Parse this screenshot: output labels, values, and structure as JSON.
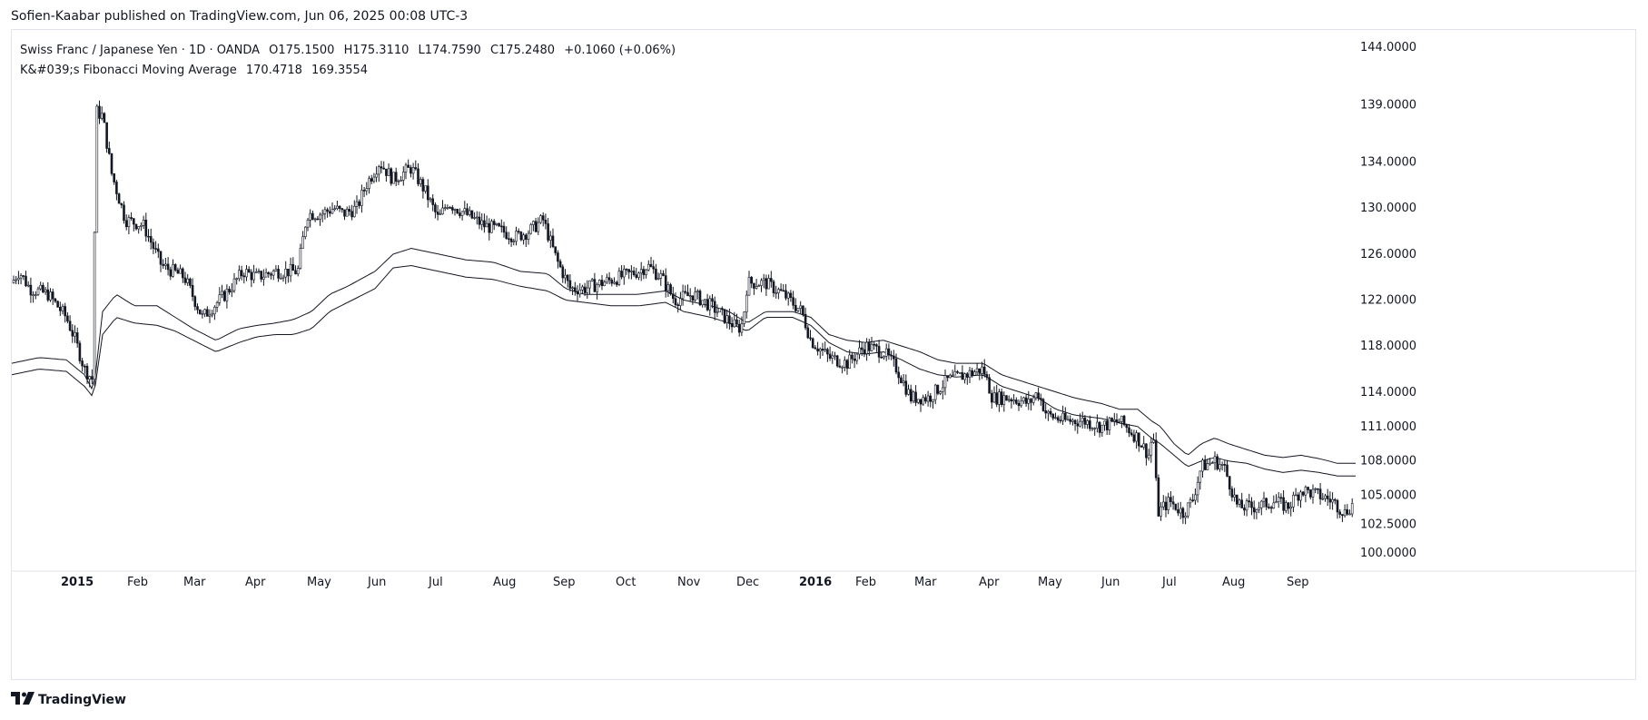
{
  "header": {
    "publisher": "Sofien-Kaabar published on TradingView.com, Jun 06, 2025 00:08 UTC-3"
  },
  "legend": {
    "symbol": "Swiss Franc / Japanese Yen · 1D · OANDA",
    "open": "O175.1500",
    "high": "H175.3110",
    "low": "L174.7590",
    "close": "C175.2480",
    "change": "+0.1060 (+0.06%)",
    "indicator_name": "K&#039;s Fibonacci Moving Average",
    "indicator_v1": "170.4718",
    "indicator_v2": "169.3554"
  },
  "footer": {
    "brand": "TradingView",
    "logo_icon": "tradingview-logo-icon"
  },
  "colors": {
    "candle": "#131722",
    "ma": "#131722",
    "grid": "#e0e3eb",
    "text": "#131722"
  },
  "chart_data": {
    "type": "candlestick",
    "ylim": [
      98.5,
      145.5
    ],
    "y_ticks": [
      "144.0000",
      "139.0000",
      "134.0000",
      "130.0000",
      "126.0000",
      "122.0000",
      "118.0000",
      "114.0000",
      "111.0000",
      "108.0000",
      "105.0000",
      "102.5000",
      "100.0000"
    ],
    "x_ticks": [
      {
        "label": "2015",
        "bold": true
      },
      {
        "label": "Feb"
      },
      {
        "label": "Mar"
      },
      {
        "label": "Apr"
      },
      {
        "label": "May"
      },
      {
        "label": "Jun"
      },
      {
        "label": "Jul"
      },
      {
        "label": "Aug"
      },
      {
        "label": "Sep"
      },
      {
        "label": "Oct"
      },
      {
        "label": "Nov"
      },
      {
        "label": "Dec"
      },
      {
        "label": "2016",
        "bold": true
      },
      {
        "label": "Feb"
      },
      {
        "label": "Mar"
      },
      {
        "label": "Apr"
      },
      {
        "label": "May"
      },
      {
        "label": "Jun"
      },
      {
        "label": "Jul"
      },
      {
        "label": "Aug"
      },
      {
        "label": "Sep"
      }
    ],
    "price_path": [
      [
        0,
        123.5
      ],
      [
        8,
        124.5
      ],
      [
        20,
        123.0
      ],
      [
        40,
        122.5
      ],
      [
        60,
        120.5
      ],
      [
        70,
        118.5
      ],
      [
        80,
        116.0
      ],
      [
        90,
        115.0
      ],
      [
        92,
        138.5
      ],
      [
        100,
        138.0
      ],
      [
        110,
        133.0
      ],
      [
        125,
        129.0
      ],
      [
        145,
        128.5
      ],
      [
        165,
        125.0
      ],
      [
        190,
        124.0
      ],
      [
        210,
        120.5
      ],
      [
        235,
        122.5
      ],
      [
        255,
        124.5
      ],
      [
        270,
        124.0
      ],
      [
        290,
        124.5
      ],
      [
        305,
        124.5
      ],
      [
        315,
        124.5
      ],
      [
        325,
        129.5
      ],
      [
        340,
        129.5
      ],
      [
        355,
        130.0
      ],
      [
        365,
        129.5
      ],
      [
        380,
        130.0
      ],
      [
        390,
        132.0
      ],
      [
        405,
        134.0
      ],
      [
        420,
        132.5
      ],
      [
        440,
        133.5
      ],
      [
        455,
        131.5
      ],
      [
        470,
        129.0
      ],
      [
        480,
        130.5
      ],
      [
        500,
        129.5
      ],
      [
        520,
        128.5
      ],
      [
        540,
        128.0
      ],
      [
        555,
        127.5
      ],
      [
        570,
        128.0
      ],
      [
        585,
        129.0
      ],
      [
        600,
        125.5
      ],
      [
        615,
        123.0
      ],
      [
        630,
        123.0
      ],
      [
        650,
        123.5
      ],
      [
        670,
        124.0
      ],
      [
        690,
        124.5
      ],
      [
        700,
        125.0
      ],
      [
        715,
        124.0
      ],
      [
        730,
        122.0
      ],
      [
        750,
        122.5
      ],
      [
        770,
        121.5
      ],
      [
        785,
        120.5
      ],
      [
        800,
        119.5
      ],
      [
        805,
        120.0
      ],
      [
        810,
        123.5
      ],
      [
        830,
        123.5
      ],
      [
        850,
        122.5
      ],
      [
        870,
        121.0
      ],
      [
        880,
        118.5
      ],
      [
        900,
        117.0
      ],
      [
        920,
        116.5
      ],
      [
        940,
        118.0
      ],
      [
        960,
        117.5
      ],
      [
        975,
        116.0
      ],
      [
        990,
        113.5
      ],
      [
        1010,
        113.5
      ],
      [
        1030,
        115.0
      ],
      [
        1050,
        115.5
      ],
      [
        1070,
        116.0
      ],
      [
        1080,
        113.5
      ],
      [
        1100,
        113.5
      ],
      [
        1120,
        113.0
      ],
      [
        1130,
        114.0
      ],
      [
        1140,
        112.0
      ],
      [
        1160,
        111.5
      ],
      [
        1180,
        111.5
      ],
      [
        1200,
        111.0
      ],
      [
        1220,
        111.5
      ],
      [
        1240,
        110.0
      ],
      [
        1252,
        108.5
      ],
      [
        1257,
        110.5
      ],
      [
        1262,
        103.5
      ],
      [
        1275,
        104.5
      ],
      [
        1290,
        103.5
      ],
      [
        1300,
        104.5
      ],
      [
        1310,
        107.5
      ],
      [
        1325,
        108.0
      ],
      [
        1335,
        107.5
      ],
      [
        1350,
        104.0
      ],
      [
        1370,
        104.0
      ],
      [
        1390,
        104.5
      ],
      [
        1405,
        104.0
      ],
      [
        1420,
        105.5
      ],
      [
        1440,
        105.0
      ],
      [
        1455,
        104.5
      ],
      [
        1468,
        103.5
      ],
      [
        1480,
        104.5
      ]
    ],
    "series": [
      {
        "name": "",
        "path": [
          [
            0,
            116.5
          ],
          [
            30,
            117.0
          ],
          [
            60,
            116.8
          ],
          [
            80,
            115.5
          ],
          [
            90,
            114.0
          ],
          [
            100,
            121.0
          ],
          [
            115,
            122.5
          ],
          [
            135,
            121.5
          ],
          [
            160,
            121.5
          ],
          [
            180,
            120.5
          ],
          [
            200,
            119.5
          ],
          [
            225,
            118.5
          ],
          [
            250,
            119.5
          ],
          [
            270,
            119.8
          ],
          [
            290,
            120.0
          ],
          [
            310,
            120.3
          ],
          [
            330,
            121.0
          ],
          [
            350,
            122.5
          ],
          [
            370,
            123.2
          ],
          [
            400,
            124.5
          ],
          [
            420,
            126.0
          ],
          [
            440,
            126.5
          ],
          [
            470,
            126.0
          ],
          [
            500,
            125.5
          ],
          [
            530,
            125.3
          ],
          [
            560,
            124.5
          ],
          [
            590,
            124.3
          ],
          [
            610,
            123.0
          ],
          [
            630,
            122.5
          ],
          [
            660,
            122.5
          ],
          [
            690,
            122.5
          ],
          [
            720,
            122.8
          ],
          [
            740,
            122.0
          ],
          [
            770,
            121.5
          ],
          [
            790,
            121.0
          ],
          [
            810,
            120.0
          ],
          [
            830,
            121.0
          ],
          [
            860,
            121.0
          ],
          [
            880,
            120.5
          ],
          [
            900,
            119.0
          ],
          [
            920,
            118.5
          ],
          [
            940,
            118.3
          ],
          [
            960,
            118.5
          ],
          [
            980,
            118.0
          ],
          [
            1000,
            117.5
          ],
          [
            1020,
            116.8
          ],
          [
            1040,
            116.5
          ],
          [
            1070,
            116.5
          ],
          [
            1090,
            115.5
          ],
          [
            1110,
            115.0
          ],
          [
            1130,
            114.5
          ],
          [
            1150,
            114.0
          ],
          [
            1170,
            113.5
          ],
          [
            1200,
            113.0
          ],
          [
            1220,
            112.5
          ],
          [
            1240,
            112.5
          ],
          [
            1255,
            111.5
          ],
          [
            1265,
            111.0
          ],
          [
            1280,
            109.5
          ],
          [
            1295,
            108.5
          ],
          [
            1310,
            109.5
          ],
          [
            1325,
            110.0
          ],
          [
            1340,
            109.5
          ],
          [
            1360,
            109.0
          ],
          [
            1380,
            108.5
          ],
          [
            1400,
            108.3
          ],
          [
            1420,
            108.5
          ],
          [
            1440,
            108.2
          ],
          [
            1460,
            107.8
          ],
          [
            1480,
            107.8
          ]
        ]
      },
      {
        "name": "",
        "path": [
          [
            0,
            115.5
          ],
          [
            30,
            116.0
          ],
          [
            60,
            115.8
          ],
          [
            80,
            114.5
          ],
          [
            90,
            113.5
          ],
          [
            100,
            119.0
          ],
          [
            115,
            120.5
          ],
          [
            135,
            120.0
          ],
          [
            160,
            119.8
          ],
          [
            180,
            119.3
          ],
          [
            200,
            118.5
          ],
          [
            225,
            117.5
          ],
          [
            250,
            118.3
          ],
          [
            270,
            118.8
          ],
          [
            290,
            119.0
          ],
          [
            310,
            119.0
          ],
          [
            330,
            119.5
          ],
          [
            350,
            121.0
          ],
          [
            370,
            121.8
          ],
          [
            400,
            123.0
          ],
          [
            420,
            124.8
          ],
          [
            440,
            125.0
          ],
          [
            470,
            124.5
          ],
          [
            500,
            124.0
          ],
          [
            530,
            123.8
          ],
          [
            560,
            123.2
          ],
          [
            590,
            122.8
          ],
          [
            610,
            122.0
          ],
          [
            630,
            121.8
          ],
          [
            660,
            121.5
          ],
          [
            690,
            121.5
          ],
          [
            720,
            121.8
          ],
          [
            740,
            121.0
          ],
          [
            770,
            120.5
          ],
          [
            790,
            120.0
          ],
          [
            810,
            119.3
          ],
          [
            830,
            120.5
          ],
          [
            860,
            120.5
          ],
          [
            880,
            119.8
          ],
          [
            900,
            118.3
          ],
          [
            920,
            117.5
          ],
          [
            940,
            117.3
          ],
          [
            960,
            117.5
          ],
          [
            980,
            116.8
          ],
          [
            1000,
            116.0
          ],
          [
            1020,
            115.5
          ],
          [
            1040,
            115.3
          ],
          [
            1070,
            115.5
          ],
          [
            1090,
            114.5
          ],
          [
            1110,
            114.0
          ],
          [
            1130,
            113.5
          ],
          [
            1150,
            112.5
          ],
          [
            1170,
            112.0
          ],
          [
            1200,
            111.7
          ],
          [
            1220,
            111.3
          ],
          [
            1240,
            111.0
          ],
          [
            1255,
            110.0
          ],
          [
            1265,
            109.5
          ],
          [
            1280,
            108.5
          ],
          [
            1295,
            107.5
          ],
          [
            1310,
            108.0
          ],
          [
            1325,
            108.3
          ],
          [
            1340,
            108.0
          ],
          [
            1360,
            107.8
          ],
          [
            1380,
            107.3
          ],
          [
            1400,
            107.0
          ],
          [
            1420,
            107.2
          ],
          [
            1440,
            107.0
          ],
          [
            1460,
            106.7
          ],
          [
            1480,
            106.7
          ]
        ]
      }
    ]
  }
}
